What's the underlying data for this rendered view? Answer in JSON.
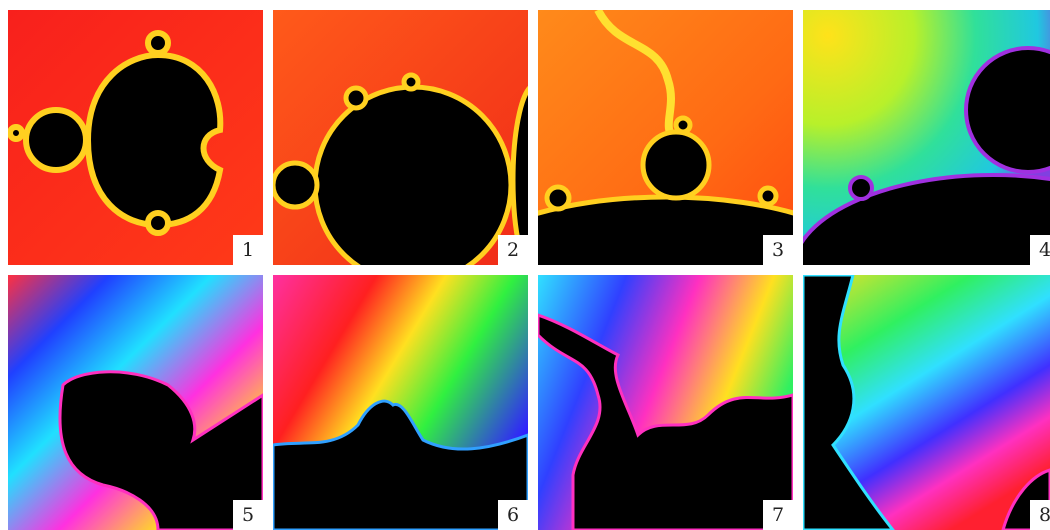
{
  "panels": [
    {
      "label": "1"
    },
    {
      "label": "2"
    },
    {
      "label": "3"
    },
    {
      "label": "4"
    },
    {
      "label": "5"
    },
    {
      "label": "6"
    },
    {
      "label": "7"
    },
    {
      "label": "8"
    }
  ]
}
